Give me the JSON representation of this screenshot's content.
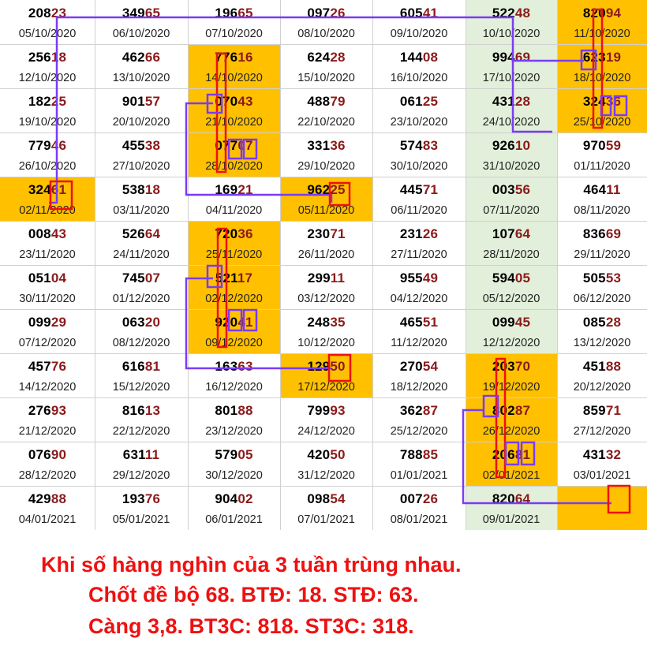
{
  "colors": {
    "highlight": "#ffc000",
    "green_column": "#e2efda",
    "white": "#ffffff",
    "tail_digits": "#8b1a1a",
    "path_line": "#7a3cf2",
    "box_line": "#ee1111",
    "caption_text": "#ee1111"
  },
  "grid": {
    "rows": [
      [
        {
          "n": "20823",
          "d": "05/10/2020"
        },
        {
          "n": "34965",
          "d": "06/10/2020"
        },
        {
          "n": "19665",
          "d": "07/10/2020"
        },
        {
          "n": "09726",
          "d": "08/10/2020"
        },
        {
          "n": "60541",
          "d": "09/10/2020"
        },
        {
          "n": "52248",
          "d": "10/10/2020"
        },
        {
          "n": "82094",
          "d": "11/10/2020",
          "hl": true
        }
      ],
      [
        {
          "n": "25618",
          "d": "12/10/2020"
        },
        {
          "n": "46266",
          "d": "13/10/2020"
        },
        {
          "n": "77616",
          "d": "14/10/2020",
          "hl": true
        },
        {
          "n": "62428",
          "d": "15/10/2020"
        },
        {
          "n": "14408",
          "d": "16/10/2020"
        },
        {
          "n": "99469",
          "d": "17/10/2020"
        },
        {
          "n": "62319",
          "d": "18/10/2020",
          "hl": true
        }
      ],
      [
        {
          "n": "18225",
          "d": "19/10/2020"
        },
        {
          "n": "90157",
          "d": "20/10/2020"
        },
        {
          "n": "07043",
          "d": "21/10/2020",
          "hl": true
        },
        {
          "n": "48879",
          "d": "22/10/2020"
        },
        {
          "n": "06125",
          "d": "23/10/2020"
        },
        {
          "n": "43128",
          "d": "24/10/2020"
        },
        {
          "n": "32436",
          "d": "25/10/2020",
          "hl": true
        }
      ],
      [
        {
          "n": "77946",
          "d": "26/10/2020"
        },
        {
          "n": "45538",
          "d": "27/10/2020"
        },
        {
          "n": "07707",
          "d": "28/10/2020",
          "hl": true
        },
        {
          "n": "33136",
          "d": "29/10/2020"
        },
        {
          "n": "57483",
          "d": "30/10/2020"
        },
        {
          "n": "92610",
          "d": "31/10/2020"
        },
        {
          "n": "97059",
          "d": "01/11/2020"
        }
      ],
      [
        {
          "n": "32461",
          "d": "02/11/2020",
          "hl": true
        },
        {
          "n": "53818",
          "d": "03/11/2020"
        },
        {
          "n": "16921",
          "d": "04/11/2020"
        },
        {
          "n": "96225",
          "d": "05/11/2020",
          "hl": true
        },
        {
          "n": "44571",
          "d": "06/11/2020"
        },
        {
          "n": "00356",
          "d": "07/11/2020"
        },
        {
          "n": "46411",
          "d": "08/11/2020"
        }
      ],
      [
        {
          "n": "00843",
          "d": "23/11/2020"
        },
        {
          "n": "52664",
          "d": "24/11/2020"
        },
        {
          "n": "72036",
          "d": "25/11/2020",
          "hl": true
        },
        {
          "n": "23071",
          "d": "26/11/2020"
        },
        {
          "n": "23126",
          "d": "27/11/2020"
        },
        {
          "n": "10764",
          "d": "28/11/2020"
        },
        {
          "n": "83669",
          "d": "29/11/2020"
        }
      ],
      [
        {
          "n": "05104",
          "d": "30/11/2020"
        },
        {
          "n": "74507",
          "d": "01/12/2020"
        },
        {
          "n": "52117",
          "d": "02/12/2020",
          "hl": true
        },
        {
          "n": "29911",
          "d": "03/12/2020"
        },
        {
          "n": "95549",
          "d": "04/12/2020"
        },
        {
          "n": "59405",
          "d": "05/12/2020"
        },
        {
          "n": "50553",
          "d": "06/12/2020"
        }
      ],
      [
        {
          "n": "09929",
          "d": "07/12/2020"
        },
        {
          "n": "06320",
          "d": "08/12/2020"
        },
        {
          "n": "92041",
          "d": "09/12/2020",
          "hl": true
        },
        {
          "n": "24835",
          "d": "10/12/2020"
        },
        {
          "n": "46551",
          "d": "11/12/2020"
        },
        {
          "n": "09945",
          "d": "12/12/2020"
        },
        {
          "n": "08528",
          "d": "13/12/2020"
        }
      ],
      [
        {
          "n": "45776",
          "d": "14/12/2020"
        },
        {
          "n": "61681",
          "d": "15/12/2020"
        },
        {
          "n": "16363",
          "d": "16/12/2020"
        },
        {
          "n": "12950",
          "d": "17/12/2020",
          "hl": true
        },
        {
          "n": "27054",
          "d": "18/12/2020"
        },
        {
          "n": "20370",
          "d": "19/12/2020",
          "hl": true
        },
        {
          "n": "45188",
          "d": "20/12/2020"
        }
      ],
      [
        {
          "n": "27693",
          "d": "21/12/2020"
        },
        {
          "n": "81613",
          "d": "22/12/2020"
        },
        {
          "n": "80188",
          "d": "23/12/2020"
        },
        {
          "n": "79993",
          "d": "24/12/2020"
        },
        {
          "n": "36287",
          "d": "25/12/2020"
        },
        {
          "n": "80287",
          "d": "26/12/2020",
          "hl": true
        },
        {
          "n": "85971",
          "d": "27/12/2020"
        }
      ],
      [
        {
          "n": "07690",
          "d": "28/12/2020"
        },
        {
          "n": "63111",
          "d": "29/12/2020"
        },
        {
          "n": "57905",
          "d": "30/12/2020"
        },
        {
          "n": "42050",
          "d": "31/12/2020"
        },
        {
          "n": "78885",
          "d": "01/01/2021"
        },
        {
          "n": "20681",
          "d": "02/01/2021",
          "hl": true
        },
        {
          "n": "43132",
          "d": "03/01/2021"
        }
      ],
      [
        {
          "n": "42988",
          "d": "04/01/2021"
        },
        {
          "n": "19376",
          "d": "05/01/2021"
        },
        {
          "n": "90402",
          "d": "06/01/2021"
        },
        {
          "n": "09854",
          "d": "07/01/2021"
        },
        {
          "n": "00726",
          "d": "08/01/2021"
        },
        {
          "n": "82064",
          "d": "09/01/2021"
        },
        {
          "n": "",
          "d": "",
          "hl": true
        }
      ]
    ]
  },
  "caption": {
    "line1": "Khi số hàng nghìn của 3 tuần trùng nhau.",
    "line2": "Chốt đề bộ 68. BTĐ: 18. STĐ: 63.",
    "line3": "Càng 3,8. BT3C: 818. ST3C: 318."
  }
}
